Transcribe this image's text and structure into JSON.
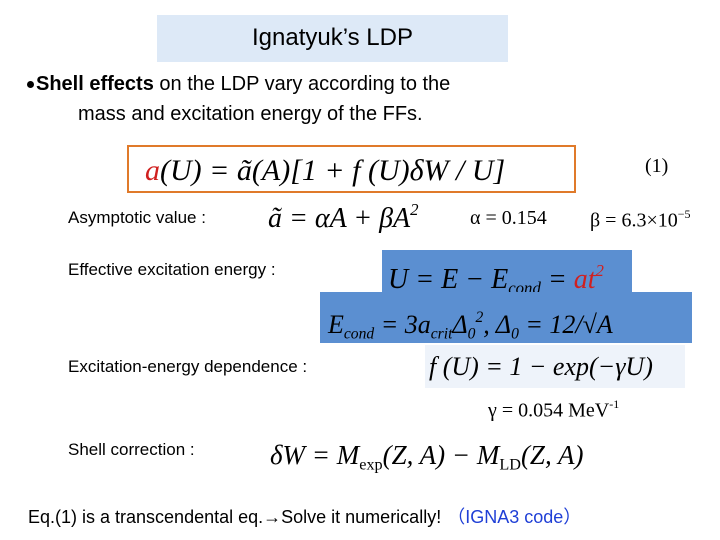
{
  "header": {
    "title": "Ignatyuk’s LDP"
  },
  "bullet": {
    "bold": "Shell effects",
    "line1": " on the LDP vary according to the",
    "line2": "mass and excitation energy of the FFs."
  },
  "main_equation": {
    "parts": [
      "a",
      "(U) = ã(A)[1 + f (U)δW / U]"
    ],
    "number": "(1)"
  },
  "rows": [
    {
      "label": "Asymptotic value :",
      "equations": [
        [
          "ã = αA + βA",
          "2"
        ],
        [
          "α = 0.154"
        ],
        [
          "β = 6.3×10",
          "−5"
        ]
      ]
    },
    {
      "label": "Effective excitation energy :",
      "equations": [
        [
          "U = E − E",
          "cond",
          " = ",
          "at",
          "2"
        ],
        [
          "E",
          "cond",
          " = 3a",
          "crit",
          "Δ",
          "0",
          "2",
          ",   Δ",
          "0",
          " = 12/√A"
        ]
      ]
    },
    {
      "label": "Excitation-energy dependence :",
      "equations": [
        [
          "f (U) = 1 − exp(−γU)"
        ],
        [
          "γ = 0.054 MeV",
          "-1"
        ]
      ]
    },
    {
      "label": "Shell correction :",
      "equations": [
        [
          "δW = M",
          "exp",
          "(Z, A) − M",
          "LD",
          "(Z, A)"
        ]
      ]
    }
  ],
  "footer": {
    "text": "Eq.(1) is a transcendental eq.→Solve it numerically!",
    "note": "（IGNA3 code）"
  }
}
